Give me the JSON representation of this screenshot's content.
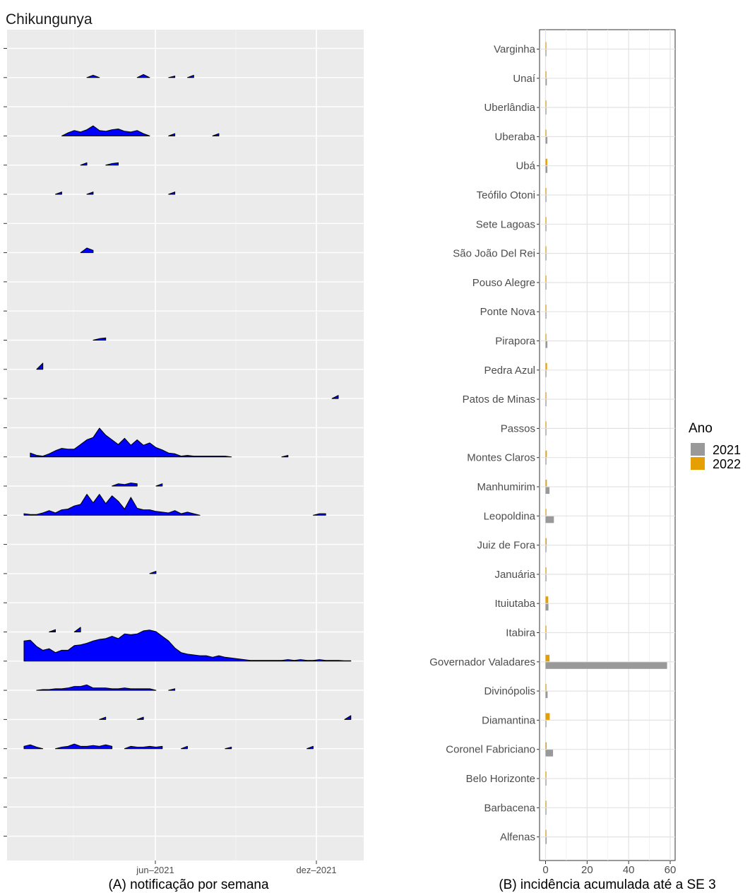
{
  "title": "Chikungunya",
  "chart_data": [
    {
      "type": "area",
      "name": "ridgeline",
      "title": "Chikungunya",
      "xlabel": "(A) notificação por semana",
      "ticks": [
        "jun–2021",
        "dez–2021"
      ],
      "grid": true,
      "fill_color": "#0000ff",
      "x_weeks_domain": [
        1,
        53
      ],
      "rows_top_to_bottom": [
        "Varginha",
        "Unaí",
        "Uberlândia",
        "Uberaba",
        "Ubá",
        "Teófilo Otoni",
        "Sete Lagoas",
        "São João Del Rei",
        "Pouso Alegre",
        "Ponte Nova",
        "Pirapora",
        "Pedra Azul",
        "Patos de Minas",
        "Passos",
        "Montes Claros",
        "Manhumirim",
        "Leopoldina",
        "Juiz de Fora",
        "Januária",
        "Ituiutaba",
        "Itabira",
        "Governador Valadares",
        "Divinópolis",
        "Diamantina",
        "Coronel Fabriciano",
        "Belo Horizonte",
        "Barbacena",
        "Alfenas"
      ],
      "series": [
        {
          "name": "Unaí",
          "x": [
            11,
            12,
            13,
            19,
            20,
            21,
            24,
            25,
            27,
            28
          ],
          "y": [
            0,
            0.3,
            0,
            0,
            0.4,
            0,
            0,
            0.2,
            0,
            0.3
          ]
        },
        {
          "name": "Uberaba",
          "x": [
            7,
            8,
            9,
            10,
            11,
            12,
            13,
            14,
            15,
            16,
            17,
            18,
            19,
            20,
            21,
            24,
            25,
            31,
            32
          ],
          "y": [
            0,
            0.4,
            0.7,
            0.5,
            0.8,
            1.3,
            0.7,
            0.6,
            0.8,
            0.9,
            0.6,
            0.5,
            0.7,
            0.3,
            0,
            0,
            0.3,
            0,
            0.3
          ]
        },
        {
          "name": "Ubá",
          "x": [
            10,
            11,
            14,
            15,
            16
          ],
          "y": [
            0,
            0.3,
            0,
            0.2,
            0.3
          ]
        },
        {
          "name": "Teófilo Otoni",
          "x": [
            6,
            7,
            11,
            12,
            24,
            25
          ],
          "y": [
            0,
            0.3,
            0,
            0.3,
            0,
            0.3
          ]
        },
        {
          "name": "São João Del Rei",
          "x": [
            10,
            11,
            12
          ],
          "y": [
            0,
            0.6,
            0.3
          ]
        },
        {
          "name": "Pirapora",
          "x": [
            12,
            13,
            14
          ],
          "y": [
            0,
            0.2,
            0.3
          ]
        },
        {
          "name": "Pedra Azul",
          "x": [
            3,
            4
          ],
          "y": [
            0,
            0.8
          ]
        },
        {
          "name": "Patos de Minas",
          "x": [
            50,
            51
          ],
          "y": [
            0,
            0.4
          ]
        },
        {
          "name": "Manhumirim",
          "x": [
            15,
            16,
            17,
            18,
            19,
            22,
            23
          ],
          "y": [
            0,
            0.3,
            0.2,
            0.4,
            0.3,
            0,
            0.3
          ]
        },
        {
          "name": "Montes Claros",
          "x": [
            2,
            3,
            4,
            5,
            6,
            7,
            8,
            9,
            10,
            11,
            12,
            13,
            14,
            15,
            16,
            17,
            18,
            19,
            20,
            21,
            22,
            23,
            24,
            25,
            26,
            27,
            28,
            29,
            30,
            31,
            32,
            33,
            34,
            42,
            43
          ],
          "y": [
            0.5,
            0.2,
            0.1,
            0.4,
            0.8,
            1.1,
            1.0,
            1.0,
            1.6,
            2.2,
            2.5,
            3.7,
            2.8,
            2.2,
            1.6,
            2.4,
            1.5,
            2.2,
            1.5,
            1.8,
            1.2,
            0.9,
            0.5,
            0.4,
            0.1,
            0.2,
            0.1,
            0.1,
            0.1,
            0.1,
            0.1,
            0.1,
            0,
            0,
            0.2
          ]
        },
        {
          "name": "Leopoldina",
          "x": [
            1,
            2,
            3,
            4,
            5,
            6,
            7,
            8,
            9,
            10,
            11,
            12,
            13,
            14,
            15,
            16,
            17,
            18,
            19,
            20,
            21,
            22,
            23,
            24,
            25,
            26,
            27,
            28,
            29,
            47,
            48,
            49
          ],
          "y": [
            0.2,
            0.1,
            0.1,
            0.3,
            0.6,
            0.3,
            0.7,
            0.8,
            1.2,
            1.4,
            2.7,
            1.6,
            2.7,
            1.5,
            2.5,
            1.8,
            0.8,
            2.3,
            0.9,
            0.7,
            0.7,
            0.5,
            0.4,
            0.3,
            0.6,
            0.2,
            0.4,
            0.2,
            0,
            0,
            0.2,
            0.2
          ]
        },
        {
          "name": "Januária",
          "x": [
            21,
            22
          ],
          "y": [
            0,
            0.3
          ]
        },
        {
          "name": "Itabira",
          "x": [
            5,
            6,
            9,
            10
          ],
          "y": [
            0,
            0.3,
            0,
            0.6
          ]
        },
        {
          "name": "Governador Valadares",
          "x": [
            1,
            2,
            3,
            4,
            5,
            6,
            7,
            8,
            9,
            10,
            11,
            12,
            13,
            14,
            15,
            16,
            17,
            18,
            19,
            20,
            21,
            22,
            23,
            24,
            25,
            26,
            27,
            28,
            29,
            30,
            31,
            32,
            33,
            34,
            35,
            36,
            37,
            38,
            39,
            40,
            41,
            42,
            43,
            44,
            45,
            46,
            47,
            48,
            49,
            50,
            51,
            52,
            53
          ],
          "y": [
            2.6,
            2.7,
            1.9,
            1.4,
            1.6,
            1.1,
            1.4,
            1.4,
            2.0,
            2.1,
            2.3,
            2.6,
            2.8,
            2.9,
            3.2,
            2.9,
            3.5,
            3.4,
            3.5,
            3.9,
            4.0,
            3.8,
            3.2,
            2.6,
            1.7,
            1.1,
            0.9,
            0.8,
            0.7,
            0.7,
            0.5,
            0.7,
            0.5,
            0.4,
            0.3,
            0.2,
            0.1,
            0.1,
            0.1,
            0.1,
            0.1,
            0.1,
            0.2,
            0.1,
            0.2,
            0.1,
            0.1,
            0.2,
            0.1,
            0.1,
            0.1,
            0.05,
            0.05
          ]
        },
        {
          "name": "Divinópolis",
          "x": [
            3,
            4,
            5,
            6,
            7,
            8,
            9,
            10,
            11,
            12,
            13,
            14,
            15,
            16,
            17,
            18,
            19,
            20,
            21,
            22,
            24,
            25
          ],
          "y": [
            0,
            0.1,
            0.1,
            0.2,
            0.2,
            0.3,
            0.5,
            0.5,
            0.7,
            0.3,
            0.3,
            0.3,
            0.2,
            0.2,
            0.3,
            0.2,
            0.2,
            0.2,
            0.2,
            0,
            0,
            0.2
          ]
        },
        {
          "name": "Diamantina",
          "x": [
            13,
            14,
            19,
            20,
            52,
            53
          ],
          "y": [
            0,
            0.3,
            0,
            0.3,
            0,
            0.5
          ]
        },
        {
          "name": "Coronel Fabriciano",
          "x": [
            1,
            2,
            3,
            4,
            6,
            7,
            8,
            9,
            10,
            11,
            12,
            13,
            14,
            15,
            17,
            18,
            19,
            20,
            21,
            22,
            23,
            26,
            27,
            33,
            34,
            46,
            47
          ],
          "y": [
            0.3,
            0.5,
            0.2,
            0,
            0,
            0.2,
            0.3,
            0.6,
            0.3,
            0.3,
            0.4,
            0.3,
            0.5,
            0.3,
            0,
            0.3,
            0.2,
            0.2,
            0.3,
            0.2,
            0.3,
            0,
            0.3,
            0,
            0.2,
            0,
            0.3
          ]
        }
      ]
    },
    {
      "type": "bar",
      "name": "incidencia",
      "xlabel": "(B) incidência acumulada até a SE 3",
      "xlim": [
        0,
        60
      ],
      "xticks": [
        0,
        20,
        40,
        60
      ],
      "grid": true,
      "legend": {
        "title": "Ano",
        "position": "right"
      },
      "categories_top_to_bottom": [
        "Varginha",
        "Unaí",
        "Uberlândia",
        "Uberaba",
        "Ubá",
        "Teófilo Otoni",
        "Sete Lagoas",
        "São João Del Rei",
        "Pouso Alegre",
        "Ponte Nova",
        "Pirapora",
        "Pedra Azul",
        "Patos de Minas",
        "Passos",
        "Montes Claros",
        "Manhumirim",
        "Leopoldina",
        "Juiz de Fora",
        "Januária",
        "Ituiutaba",
        "Itabira",
        "Governador Valadares",
        "Divinópolis",
        "Diamantina",
        "Coronel Fabriciano",
        "Belo Horizonte",
        "Barbacena",
        "Alfenas"
      ],
      "series": [
        {
          "name": "2021",
          "color": "#999999",
          "values": [
            0.2,
            0.6,
            0.1,
            0.9,
            0.9,
            0.4,
            0.4,
            0.3,
            0.2,
            0.3,
            0.9,
            0.2,
            0.2,
            0.2,
            0.2,
            1.9,
            4.0,
            0.2,
            0.2,
            1.4,
            0.4,
            58.5,
            1.0,
            0.1,
            3.6,
            0.4,
            0.2,
            0.5
          ]
        },
        {
          "name": "2022",
          "color": "#e69f00",
          "values": [
            0.3,
            0.4,
            0.2,
            0.4,
            0.8,
            0.3,
            0.4,
            0.2,
            0.2,
            0.2,
            0.4,
            0.7,
            0.2,
            0.2,
            0.6,
            0.6,
            0.2,
            0.5,
            0.2,
            1.3,
            0.4,
            1.9,
            0.4,
            2.0,
            0.5,
            0.2,
            0.2,
            0.3
          ]
        }
      ]
    }
  ]
}
